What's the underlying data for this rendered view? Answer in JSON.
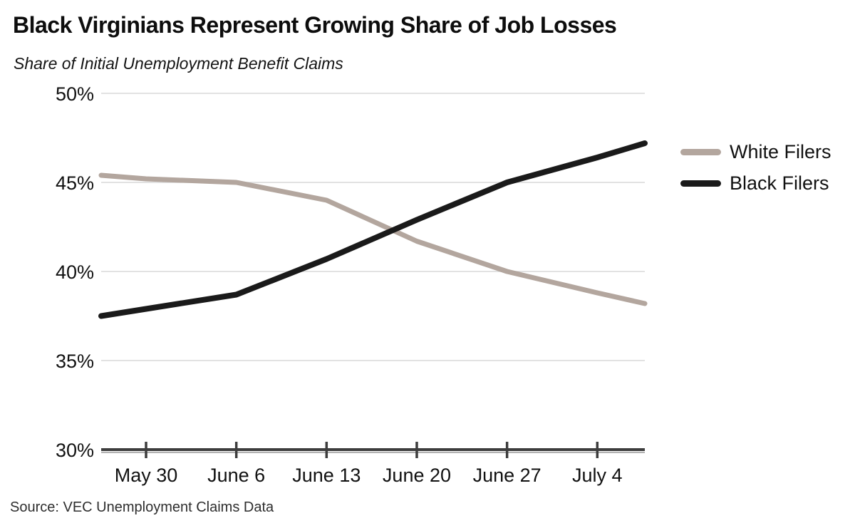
{
  "header": {
    "title": "Black Virginians Represent Growing Share of Job Losses",
    "subtitle": "Share of Initial Unemployment Benefit Claims"
  },
  "footer": {
    "source": "Source: VEC Unemployment Claims Data"
  },
  "chart_data": {
    "type": "line",
    "title": "Black Virginians Represent Growing Share of Job Losses",
    "subtitle": "Share of Initial Unemployment Benefit Claims",
    "source": "Source: VEC Unemployment Claims Data",
    "categories": [
      "",
      "May 30",
      "June 6",
      "June 13",
      "June 20",
      "June 27",
      "July 4",
      ""
    ],
    "series": [
      {
        "name": "White Filers",
        "color": "#b3a69e",
        "values": [
          45.4,
          45.2,
          45.0,
          44.0,
          41.7,
          40.0,
          38.8,
          38.2
        ]
      },
      {
        "name": "Black Filers",
        "color": "#1a1a1a",
        "values": [
          37.5,
          37.9,
          38.7,
          40.7,
          42.9,
          45.0,
          46.4,
          47.2
        ]
      }
    ],
    "ylabel": "Share of Initial Unemployment Benefit Claims",
    "ylim": [
      30,
      50
    ],
    "y_ticks": [
      "30%",
      "35%",
      "40%",
      "45%",
      "50%"
    ],
    "grid": true,
    "legend_position": "right",
    "colors": {
      "grid": "#d9d9d9",
      "axis": "#3d3d3d",
      "text": "#111111"
    }
  },
  "legend": {
    "items": [
      {
        "label": "White Filers",
        "color": "#b3a69e"
      },
      {
        "label": "Black Filers",
        "color": "#1a1a1a"
      }
    ]
  }
}
